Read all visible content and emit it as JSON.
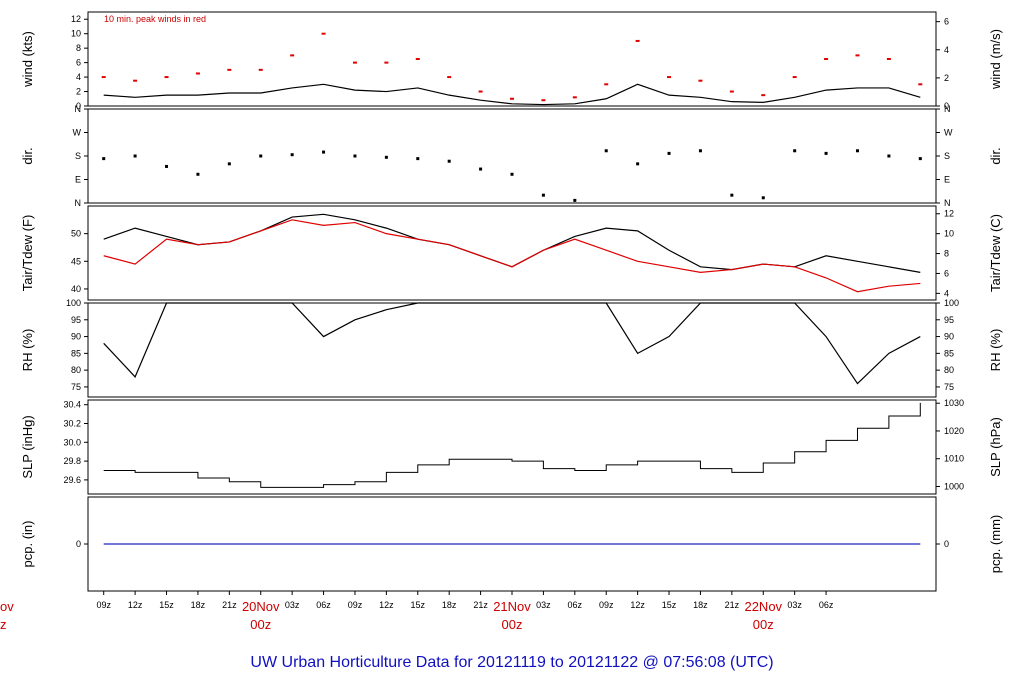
{
  "title": "UW Urban Horticulture Data for 20121119  to  20121122 @ 07:56:08  (UTC)",
  "colors": {
    "frame": "#000000",
    "red": "#e00000",
    "blue": "#2020c0",
    "title": "#1010c0"
  },
  "chart_data": [
    {
      "id": "wind",
      "type": "line",
      "ylabel_left": "wind (kts)",
      "ylabel_right": "wind (m/s)",
      "ylim": [
        0,
        13
      ],
      "yticks_left": [
        0,
        2,
        4,
        6,
        8,
        10,
        12
      ],
      "yticks_right": [
        0,
        2,
        4,
        6
      ],
      "annotation": "10 min. peak winds in red",
      "series": [
        {
          "name": "",
          "color": "#000000",
          "style": "line",
          "x": [
            0,
            3,
            6,
            9,
            12,
            15,
            18,
            21,
            24,
            27,
            30,
            33,
            36,
            39,
            42,
            45,
            48,
            51,
            54,
            57,
            60,
            63,
            66,
            69,
            72,
            75,
            78
          ],
          "y": [
            1.5,
            1.2,
            1.5,
            1.5,
            1.8,
            1.8,
            2.5,
            3,
            2.2,
            2,
            2.5,
            1.5,
            0.8,
            0.3,
            0.2,
            0.3,
            1,
            3,
            1.5,
            1.2,
            0.6,
            0.5,
            1.2,
            2.2,
            2.5,
            2.5,
            1.2
          ]
        },
        {
          "name": "",
          "color": "#e00000",
          "style": "points",
          "x": [
            0,
            3,
            6,
            9,
            12,
            15,
            18,
            21,
            24,
            27,
            30,
            33,
            36,
            39,
            42,
            45,
            48,
            51,
            54,
            57,
            60,
            63,
            66,
            69,
            72,
            75,
            78
          ],
          "y": [
            4,
            3.5,
            4,
            4.5,
            5,
            5,
            7,
            10,
            6,
            6,
            6.5,
            4,
            2,
            1,
            0.8,
            1.2,
            3,
            9,
            4,
            3.5,
            2,
            1.5,
            4,
            6.5,
            7,
            6.5,
            3
          ]
        }
      ]
    },
    {
      "id": "dir",
      "type": "scatter",
      "ylabel_left": "dir.",
      "ylabel_right": "dir.",
      "ylim": [
        0,
        360
      ],
      "yticks_labels": [
        "N",
        "E",
        "S",
        "W",
        "N"
      ],
      "yticks_values": [
        0,
        90,
        180,
        270,
        360
      ],
      "series": [
        {
          "name": "",
          "color": "#000000",
          "style": "dots",
          "x": [
            0,
            3,
            6,
            9,
            12,
            15,
            18,
            21,
            24,
            27,
            30,
            33,
            36,
            39,
            42,
            45,
            48,
            51,
            54,
            57,
            60,
            63,
            66,
            69,
            72,
            75,
            78
          ],
          "y": [
            170,
            180,
            140,
            110,
            150,
            180,
            185,
            195,
            180,
            175,
            170,
            160,
            130,
            110,
            30,
            10,
            200,
            150,
            190,
            200,
            30,
            20,
            200,
            190,
            200,
            180,
            170
          ]
        }
      ]
    },
    {
      "id": "temp",
      "type": "line",
      "ylabel_left": "Tair/Tdew (F)",
      "ylabel_right": "Tair/Tdew (C)",
      "ylim": [
        38,
        55
      ],
      "yticks_left": [
        40,
        45,
        50
      ],
      "yticks_right": [
        4,
        6,
        8,
        10,
        12
      ],
      "series": [
        {
          "name": "",
          "color": "#000000",
          "style": "line",
          "x": [
            0,
            3,
            6,
            9,
            12,
            15,
            18,
            21,
            24,
            27,
            30,
            33,
            36,
            39,
            42,
            45,
            48,
            51,
            54,
            57,
            60,
            63,
            66,
            69,
            72,
            75,
            78
          ],
          "y": [
            49,
            51,
            49.5,
            48,
            48.5,
            50.5,
            53,
            53.5,
            52.5,
            51,
            49,
            48,
            46,
            44,
            47,
            49.5,
            51,
            50.5,
            47,
            44,
            43.5,
            44.5,
            44,
            46,
            45,
            44,
            43
          ]
        },
        {
          "name": "",
          "color": "#e00000",
          "style": "line",
          "x": [
            0,
            3,
            6,
            9,
            12,
            15,
            18,
            21,
            24,
            27,
            30,
            33,
            36,
            39,
            42,
            45,
            48,
            51,
            54,
            57,
            60,
            63,
            66,
            69,
            72,
            75,
            78
          ],
          "y": [
            46,
            44.5,
            49,
            48,
            48.5,
            50.5,
            52.5,
            51.5,
            52,
            50,
            49,
            48,
            46,
            44,
            47,
            49,
            47,
            45,
            44,
            43,
            43.5,
            44.5,
            44,
            42,
            39.5,
            40.5,
            41
          ]
        }
      ]
    },
    {
      "id": "rh",
      "type": "line",
      "ylabel_left": "RH (%)",
      "ylabel_right": "RH (%)",
      "ylim": [
        72,
        100
      ],
      "yticks_left": [
        75,
        80,
        85,
        90,
        95,
        100
      ],
      "yticks_right": [
        75,
        80,
        85,
        90,
        95,
        100
      ],
      "series": [
        {
          "name": "",
          "color": "#000000",
          "style": "line",
          "x": [
            0,
            3,
            6,
            9,
            12,
            15,
            18,
            21,
            24,
            27,
            30,
            33,
            36,
            39,
            42,
            45,
            48,
            51,
            54,
            57,
            60,
            63,
            66,
            69,
            72,
            75,
            78
          ],
          "y": [
            88,
            78,
            100,
            100,
            100,
            100,
            100,
            90,
            95,
            98,
            100,
            100,
            100,
            100,
            100,
            100,
            100,
            85,
            90,
            100,
            100,
            100,
            100,
            90,
            76,
            85,
            90
          ]
        }
      ]
    },
    {
      "id": "slp",
      "type": "line",
      "ylabel_left": "SLP (inHg)",
      "ylabel_right": "SLP (hPa)",
      "ylim": [
        29.45,
        30.45
      ],
      "yticks_left": [
        29.6,
        29.8,
        30.0,
        30.2,
        30.4
      ],
      "yticks_right": [
        1000,
        1010,
        1020,
        1030
      ],
      "series": [
        {
          "name": "",
          "color": "#000000",
          "style": "step",
          "x": [
            0,
            3,
            6,
            9,
            12,
            15,
            18,
            21,
            24,
            27,
            30,
            33,
            36,
            39,
            42,
            45,
            48,
            51,
            54,
            57,
            60,
            63,
            66,
            69,
            72,
            75,
            78
          ],
          "y": [
            29.7,
            29.68,
            29.68,
            29.62,
            29.58,
            29.52,
            29.52,
            29.55,
            29.58,
            29.68,
            29.76,
            29.82,
            29.82,
            29.8,
            29.72,
            29.7,
            29.76,
            29.8,
            29.8,
            29.72,
            29.68,
            29.78,
            29.9,
            30.02,
            30.15,
            30.28,
            30.42
          ]
        }
      ]
    },
    {
      "id": "pcp",
      "type": "line",
      "ylabel_left": "pcp. (in)",
      "ylabel_right": "pcp. (mm)",
      "ylim": [
        -1,
        1
      ],
      "yticks_left": [
        0
      ],
      "yticks_right": [
        0
      ],
      "series": [
        {
          "name": "",
          "color": "#2020c0",
          "style": "line",
          "x": [
            0,
            78
          ],
          "y": [
            0,
            0
          ]
        }
      ]
    }
  ],
  "x_axis": {
    "range_hours": [
      -1.5,
      79.5
    ],
    "ticks": [
      {
        "h": 0,
        "label": "09z"
      },
      {
        "h": 3,
        "label": "12z"
      },
      {
        "h": 6,
        "label": "15z"
      },
      {
        "h": 9,
        "label": "18z"
      },
      {
        "h": 12,
        "label": "21z"
      },
      {
        "h": 18,
        "label": "03z"
      },
      {
        "h": 21,
        "label": "06z"
      },
      {
        "h": 24,
        "label": "09z"
      },
      {
        "h": 27,
        "label": "12z"
      },
      {
        "h": 30,
        "label": "15z"
      },
      {
        "h": 33,
        "label": "18z"
      },
      {
        "h": 36,
        "label": "21z"
      },
      {
        "h": 42,
        "label": "03z"
      },
      {
        "h": 45,
        "label": "06z"
      },
      {
        "h": 48,
        "label": "09z"
      },
      {
        "h": 51,
        "label": "12z"
      },
      {
        "h": 54,
        "label": "15z"
      },
      {
        "h": 57,
        "label": "18z"
      },
      {
        "h": 60,
        "label": "21z"
      },
      {
        "h": 66,
        "label": "03z"
      },
      {
        "h": 69,
        "label": "06z"
      }
    ],
    "days": [
      {
        "h": 15,
        "date": "20Nov",
        "time": "00z"
      },
      {
        "h": 39,
        "date": "21Nov",
        "time": "00z"
      },
      {
        "h": 63,
        "date": "22Nov",
        "time": "00z"
      }
    ],
    "edge_fragment": {
      "date": "ov",
      "time": "z"
    }
  }
}
